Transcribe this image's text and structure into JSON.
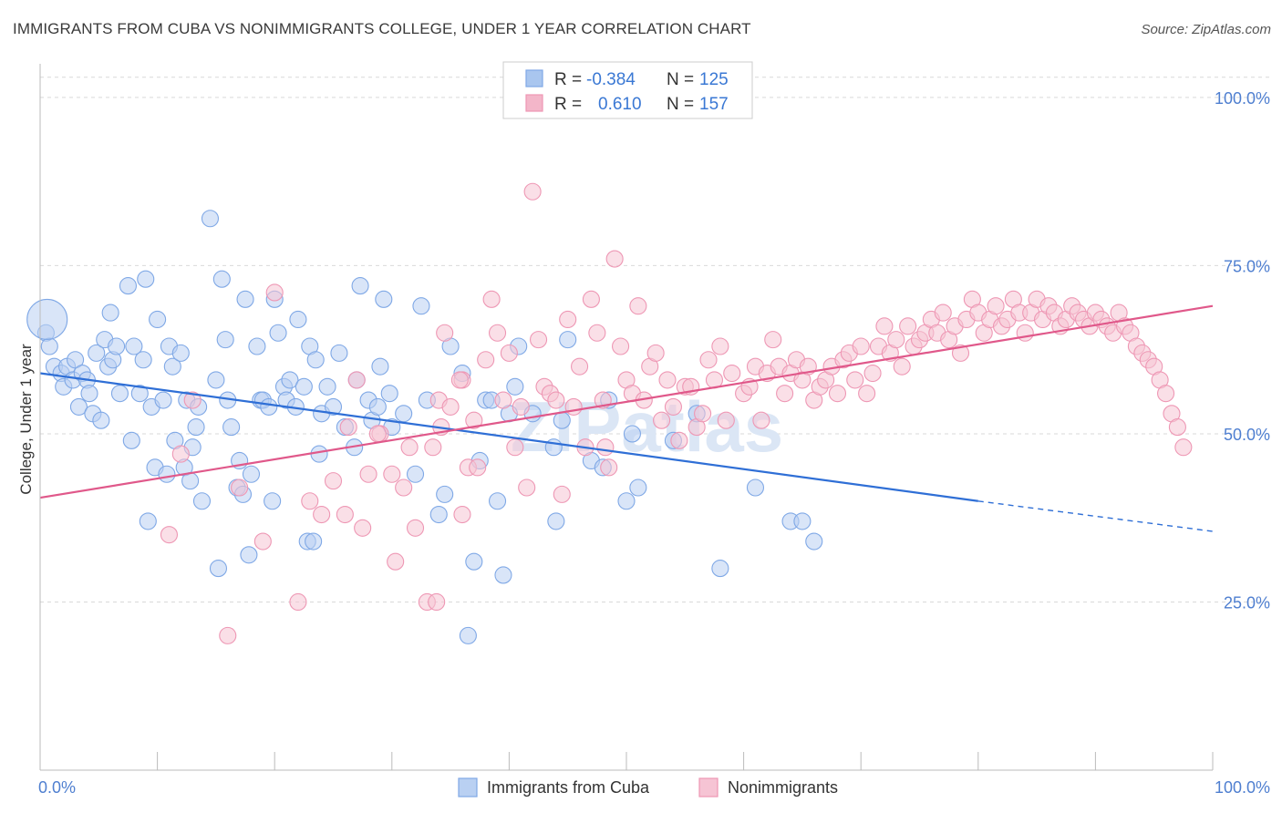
{
  "header": {
    "title": "IMMIGRANTS FROM CUBA VS NONIMMIGRANTS COLLEGE, UNDER 1 YEAR CORRELATION CHART",
    "source": "Source: ZipAtlas.com"
  },
  "watermark": "ZIPatlas",
  "stats_box": {
    "rows": [
      {
        "r_label": "R =",
        "r_value": "-0.384",
        "n_label": "N =",
        "n_value": "125",
        "color": "#a9c6ef"
      },
      {
        "r_label": "R =",
        "r_value": "0.610",
        "n_label": "N =",
        "n_value": "157",
        "color": "#f3b6c9"
      }
    ]
  },
  "chart_data": {
    "type": "scatter",
    "title": "IMMIGRANTS FROM CUBA VS NONIMMIGRANTS COLLEGE, UNDER 1 YEAR CORRELATION CHART",
    "xlabel": "",
    "ylabel": "College, Under 1 year",
    "xlim": [
      0,
      100
    ],
    "ylim": [
      0,
      105
    ],
    "x_tick_labels": [
      "0.0%",
      "100.0%"
    ],
    "y_tick_labels": [
      "25.0%",
      "50.0%",
      "75.0%",
      "100.0%"
    ],
    "y_ticks": [
      25,
      50,
      75,
      100
    ],
    "grid": true,
    "legend_position": "bottom",
    "series": [
      {
        "name": "Immigrants from Cuba",
        "color": "#7fa8e6",
        "fill": "#b9d0f2",
        "line_color": "#2f6fd6",
        "trend": {
          "x0": 0,
          "y0": 59,
          "x1": 80,
          "y1": 40,
          "dash_x1": 100,
          "dash_y1": 35.5
        },
        "points": [
          [
            0.5,
            65
          ],
          [
            0.8,
            63
          ],
          [
            1.2,
            60
          ],
          [
            1.8,
            59
          ],
          [
            2,
            57
          ],
          [
            2.3,
            60
          ],
          [
            2.8,
            58
          ],
          [
            3,
            61
          ],
          [
            3.3,
            54
          ],
          [
            3.6,
            59
          ],
          [
            4,
            58
          ],
          [
            4.2,
            56
          ],
          [
            4.5,
            53
          ],
          [
            4.8,
            62
          ],
          [
            5.2,
            52
          ],
          [
            5.5,
            64
          ],
          [
            5.8,
            60
          ],
          [
            6,
            68
          ],
          [
            6.2,
            61
          ],
          [
            6.5,
            63
          ],
          [
            6.8,
            56
          ],
          [
            7.5,
            72
          ],
          [
            7.8,
            49
          ],
          [
            8,
            63
          ],
          [
            8.5,
            56
          ],
          [
            8.8,
            61
          ],
          [
            9,
            73
          ],
          [
            9.2,
            37
          ],
          [
            9.5,
            54
          ],
          [
            9.8,
            45
          ],
          [
            10,
            67
          ],
          [
            10.5,
            55
          ],
          [
            10.8,
            44
          ],
          [
            11,
            63
          ],
          [
            11.3,
            60
          ],
          [
            11.5,
            49
          ],
          [
            12,
            62
          ],
          [
            12.3,
            45
          ],
          [
            12.5,
            55
          ],
          [
            12.8,
            43
          ],
          [
            13,
            48
          ],
          [
            13.3,
            51
          ],
          [
            13.5,
            54
          ],
          [
            13.8,
            40
          ],
          [
            14.5,
            82
          ],
          [
            15,
            58
          ],
          [
            15.2,
            30
          ],
          [
            15.5,
            73
          ],
          [
            15.8,
            64
          ],
          [
            16,
            55
          ],
          [
            16.3,
            51
          ],
          [
            16.8,
            42
          ],
          [
            17,
            46
          ],
          [
            17.3,
            41
          ],
          [
            17.5,
            70
          ],
          [
            17.8,
            32
          ],
          [
            18,
            44
          ],
          [
            18.5,
            63
          ],
          [
            18.8,
            55
          ],
          [
            19,
            55
          ],
          [
            19.5,
            54
          ],
          [
            19.8,
            40
          ],
          [
            20,
            70
          ],
          [
            20.3,
            65
          ],
          [
            20.8,
            57
          ],
          [
            21,
            55
          ],
          [
            21.3,
            58
          ],
          [
            21.8,
            54
          ],
          [
            22,
            67
          ],
          [
            22.5,
            57
          ],
          [
            22.8,
            34
          ],
          [
            23,
            63
          ],
          [
            23.3,
            34
          ],
          [
            23.5,
            61
          ],
          [
            23.8,
            47
          ],
          [
            24,
            53
          ],
          [
            24.5,
            57
          ],
          [
            25,
            54
          ],
          [
            25.5,
            62
          ],
          [
            26,
            51
          ],
          [
            26.8,
            48
          ],
          [
            27,
            58
          ],
          [
            27.3,
            72
          ],
          [
            28,
            55
          ],
          [
            28.3,
            52
          ],
          [
            28.8,
            54
          ],
          [
            29,
            60
          ],
          [
            29.3,
            70
          ],
          [
            29.8,
            56
          ],
          [
            30,
            51
          ],
          [
            31,
            53
          ],
          [
            32,
            44
          ],
          [
            32.5,
            69
          ],
          [
            33,
            55
          ],
          [
            34,
            38
          ],
          [
            34.5,
            41
          ],
          [
            35,
            63
          ],
          [
            36,
            59
          ],
          [
            37,
            31
          ],
          [
            37.5,
            46
          ],
          [
            38,
            55
          ],
          [
            38.5,
            55
          ],
          [
            39,
            40
          ],
          [
            40,
            53
          ],
          [
            40.5,
            57
          ],
          [
            40.8,
            63
          ],
          [
            42,
            53
          ],
          [
            43.8,
            48
          ],
          [
            44,
            37
          ],
          [
            44.5,
            52
          ],
          [
            45,
            64
          ],
          [
            47,
            46
          ],
          [
            48,
            45
          ],
          [
            48.5,
            55
          ],
          [
            50,
            40
          ],
          [
            50.5,
            50
          ],
          [
            51,
            42
          ],
          [
            54,
            49
          ],
          [
            56,
            53
          ],
          [
            58,
            30
          ],
          [
            61,
            42
          ],
          [
            64,
            37
          ],
          [
            65,
            37
          ],
          [
            66,
            34
          ],
          [
            36.5,
            20
          ],
          [
            39.5,
            29
          ]
        ]
      },
      {
        "name": "Nonimmigrants",
        "color": "#ee97b4",
        "fill": "#f6c4d4",
        "line_color": "#e0588a",
        "trend": {
          "x0": 0,
          "y0": 40.5,
          "x1": 100,
          "y1": 69
        },
        "points": [
          [
            11,
            35
          ],
          [
            12,
            47
          ],
          [
            13,
            55
          ],
          [
            16,
            20
          ],
          [
            17,
            42
          ],
          [
            19,
            34
          ],
          [
            20,
            71
          ],
          [
            22,
            25
          ],
          [
            23,
            40
          ],
          [
            24,
            38
          ],
          [
            25,
            43
          ],
          [
            26,
            38
          ],
          [
            27,
            58
          ],
          [
            27.5,
            36
          ],
          [
            28,
            44
          ],
          [
            29,
            50
          ],
          [
            30,
            44
          ],
          [
            31,
            42
          ],
          [
            31.5,
            48
          ],
          [
            32,
            36
          ],
          [
            33,
            25
          ],
          [
            33.5,
            48
          ],
          [
            34,
            55
          ],
          [
            34.5,
            65
          ],
          [
            35,
            54
          ],
          [
            36,
            58
          ],
          [
            36.5,
            45
          ],
          [
            37,
            52
          ],
          [
            38,
            61
          ],
          [
            38.5,
            70
          ],
          [
            39,
            65
          ],
          [
            39.5,
            55
          ],
          [
            40,
            62
          ],
          [
            40.5,
            48
          ],
          [
            41,
            54
          ],
          [
            41.5,
            42
          ],
          [
            42,
            86
          ],
          [
            42.5,
            64
          ],
          [
            43,
            57
          ],
          [
            43.5,
            56
          ],
          [
            44,
            55
          ],
          [
            44.5,
            41
          ],
          [
            45,
            67
          ],
          [
            45.5,
            54
          ],
          [
            46,
            60
          ],
          [
            46.5,
            48
          ],
          [
            47,
            70
          ],
          [
            47.5,
            65
          ],
          [
            48,
            55
          ],
          [
            48.5,
            45
          ],
          [
            49,
            76
          ],
          [
            49.5,
            63
          ],
          [
            50,
            58
          ],
          [
            50.5,
            56
          ],
          [
            51,
            69
          ],
          [
            51.5,
            55
          ],
          [
            52,
            60
          ],
          [
            52.5,
            62
          ],
          [
            53,
            52
          ],
          [
            53.5,
            58
          ],
          [
            54,
            54
          ],
          [
            54.5,
            49
          ],
          [
            55,
            57
          ],
          [
            55.5,
            57
          ],
          [
            56,
            51
          ],
          [
            56.5,
            53
          ],
          [
            57,
            61
          ],
          [
            57.5,
            58
          ],
          [
            58,
            63
          ],
          [
            58.5,
            52
          ],
          [
            59,
            59
          ],
          [
            60,
            56
          ],
          [
            60.5,
            57
          ],
          [
            61,
            60
          ],
          [
            61.5,
            52
          ],
          [
            62,
            59
          ],
          [
            62.5,
            64
          ],
          [
            63,
            60
          ],
          [
            63.5,
            56
          ],
          [
            64,
            59
          ],
          [
            64.5,
            61
          ],
          [
            65,
            58
          ],
          [
            65.5,
            60
          ],
          [
            66,
            55
          ],
          [
            66.5,
            57
          ],
          [
            67,
            58
          ],
          [
            67.5,
            60
          ],
          [
            68,
            56
          ],
          [
            68.5,
            61
          ],
          [
            69,
            62
          ],
          [
            69.5,
            58
          ],
          [
            70,
            63
          ],
          [
            70.5,
            56
          ],
          [
            71,
            59
          ],
          [
            71.5,
            63
          ],
          [
            72,
            66
          ],
          [
            72.5,
            62
          ],
          [
            73,
            64
          ],
          [
            73.5,
            60
          ],
          [
            74,
            66
          ],
          [
            74.5,
            63
          ],
          [
            75,
            64
          ],
          [
            75.5,
            65
          ],
          [
            76,
            67
          ],
          [
            76.5,
            65
          ],
          [
            77,
            68
          ],
          [
            77.5,
            64
          ],
          [
            78,
            66
          ],
          [
            78.5,
            62
          ],
          [
            79,
            67
          ],
          [
            79.5,
            70
          ],
          [
            80,
            68
          ],
          [
            80.5,
            65
          ],
          [
            81,
            67
          ],
          [
            81.5,
            69
          ],
          [
            82,
            66
          ],
          [
            82.5,
            67
          ],
          [
            83,
            70
          ],
          [
            83.5,
            68
          ],
          [
            84,
            65
          ],
          [
            84.5,
            68
          ],
          [
            85,
            70
          ],
          [
            85.5,
            67
          ],
          [
            86,
            69
          ],
          [
            86.5,
            68
          ],
          [
            87,
            66
          ],
          [
            87.5,
            67
          ],
          [
            88,
            69
          ],
          [
            88.5,
            68
          ],
          [
            89,
            67
          ],
          [
            89.5,
            66
          ],
          [
            90,
            68
          ],
          [
            90.5,
            67
          ],
          [
            91,
            66
          ],
          [
            91.5,
            65
          ],
          [
            92,
            68
          ],
          [
            92.5,
            66
          ],
          [
            93,
            65
          ],
          [
            93.5,
            63
          ],
          [
            94,
            62
          ],
          [
            94.5,
            61
          ],
          [
            95,
            60
          ],
          [
            95.5,
            58
          ],
          [
            96,
            56
          ],
          [
            96.5,
            53
          ],
          [
            97,
            51
          ],
          [
            97.5,
            48
          ],
          [
            33.8,
            25
          ],
          [
            36,
            38
          ],
          [
            37.3,
            45
          ],
          [
            26.3,
            51
          ],
          [
            28.8,
            50
          ],
          [
            30.3,
            31
          ],
          [
            34.2,
            51
          ],
          [
            35.8,
            58
          ],
          [
            48.2,
            48
          ]
        ]
      }
    ]
  },
  "legend": {
    "items": [
      {
        "label": "Immigrants from Cuba",
        "color": "#b9d0f2",
        "border": "#7fa8e6"
      },
      {
        "label": "Nonimmigrants",
        "color": "#f6c4d4",
        "border": "#ee97b4"
      }
    ]
  }
}
